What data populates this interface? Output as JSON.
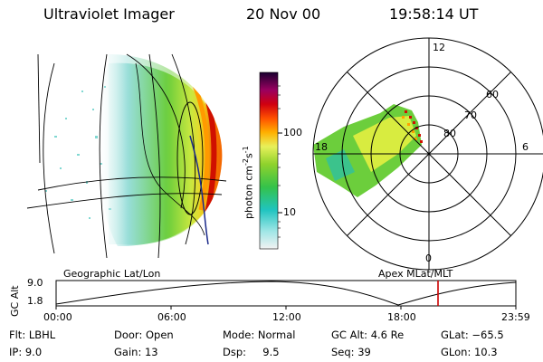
{
  "header": {
    "instrument": "Ultraviolet Imager",
    "date": "20 Nov 00",
    "time": "19:58:14 UT"
  },
  "colorbar": {
    "label_html_text": "photon cm",
    "label_sup1": "-2",
    "label_mid": "s",
    "label_sup2": "-1",
    "ticks": [
      "100",
      "10"
    ]
  },
  "polar_plot": {
    "mlt_labels": [
      "12",
      "18",
      "6",
      "0"
    ],
    "lat_labels": [
      "60",
      "70",
      "80"
    ]
  },
  "map_labels": {
    "left": "Geographic Lat/Lon",
    "right": "Apex MLat/MLT"
  },
  "altitude_plot": {
    "ylabel": "GC Alt",
    "y_ticks": [
      "9.0",
      "1.8"
    ],
    "x_ticks": [
      "00:00",
      "06:00",
      "12:00",
      "18:00",
      "23:59"
    ]
  },
  "parameters": {
    "filter": "Flt: LBHL",
    "ip": "IP: 9.0",
    "door": "Door: Open",
    "gain": "Gain: 13",
    "mode": "Mode: Normal",
    "dsp": "Dsp:     9.5",
    "gc_alt": "GC Alt: 4.6 Re",
    "seq": "Seq: 39",
    "glat": "GLat: −65.5",
    "glon": "GLon: 10.3"
  },
  "colors": {
    "cursor": "#cc0000",
    "aurora_hot": "#b00000"
  }
}
